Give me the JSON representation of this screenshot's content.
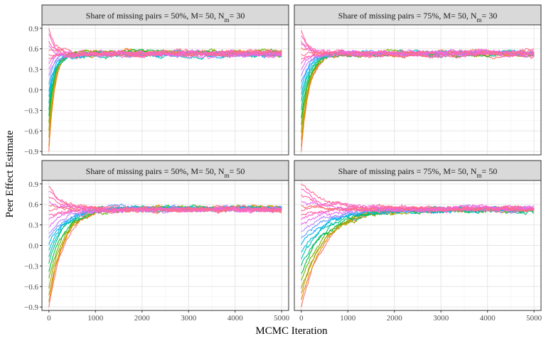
{
  "chart_data": {
    "type": "line",
    "xlabel": "MCMC Iteration",
    "ylabel": "Peer Effect Estimate",
    "xlim": [
      -150,
      5150
    ],
    "ylim": [
      -0.95,
      0.95
    ],
    "x_ticks": [
      0,
      1000,
      2000,
      3000,
      4000,
      5000
    ],
    "x_tick_labels": [
      "0",
      "1000",
      "2000",
      "3000",
      "4000",
      "5000"
    ],
    "y_ticks": [
      -0.9,
      -0.6,
      -0.3,
      0.0,
      0.3,
      0.6,
      0.9
    ],
    "y_tick_labels": [
      "−0.9",
      "−0.6",
      "−0.3",
      "0.0",
      "0.3",
      "0.6",
      "0.9"
    ],
    "grid": true,
    "converged_value": 0.53,
    "chain_starts": [
      -0.9,
      -0.82,
      -0.72,
      -0.62,
      -0.5,
      -0.4,
      -0.28,
      -0.18,
      -0.08,
      0.0,
      0.1,
      0.2,
      0.3,
      0.38,
      0.45,
      0.52,
      0.58,
      0.65,
      0.72,
      0.8,
      0.88
    ],
    "chain_colors": [
      "#F8766D",
      "#E58700",
      "#C99800",
      "#A3A500",
      "#6BB100",
      "#00BA38",
      "#00BF7D",
      "#00C0AF",
      "#00BCD8",
      "#00B0F6",
      "#619CFF",
      "#B983FF",
      "#E76BF3",
      "#FD61D1",
      "#FF67A4",
      "#FF6C91",
      "#F8766D",
      "#E76BF3",
      "#FF67A4",
      "#FD61D1",
      "#FF6C91"
    ],
    "panels": [
      {
        "title_main": "Share of missing pairs = 50%, M= 50, N",
        "title_sub": "m",
        "title_end": "= 30",
        "convergence_iterations": 120
      },
      {
        "title_main": "Share of missing pairs = 75%, M= 50, N",
        "title_sub": "m",
        "title_end": "= 30",
        "convergence_iterations": 170
      },
      {
        "title_main": "Share of missing pairs = 50%, M= 50, N",
        "title_sub": "m",
        "title_end": "= 50",
        "convergence_iterations": 330
      },
      {
        "title_main": "Share of missing pairs = 75%, M= 50, N",
        "title_sub": "m",
        "title_end": "= 50",
        "convergence_iterations": 520
      }
    ]
  }
}
